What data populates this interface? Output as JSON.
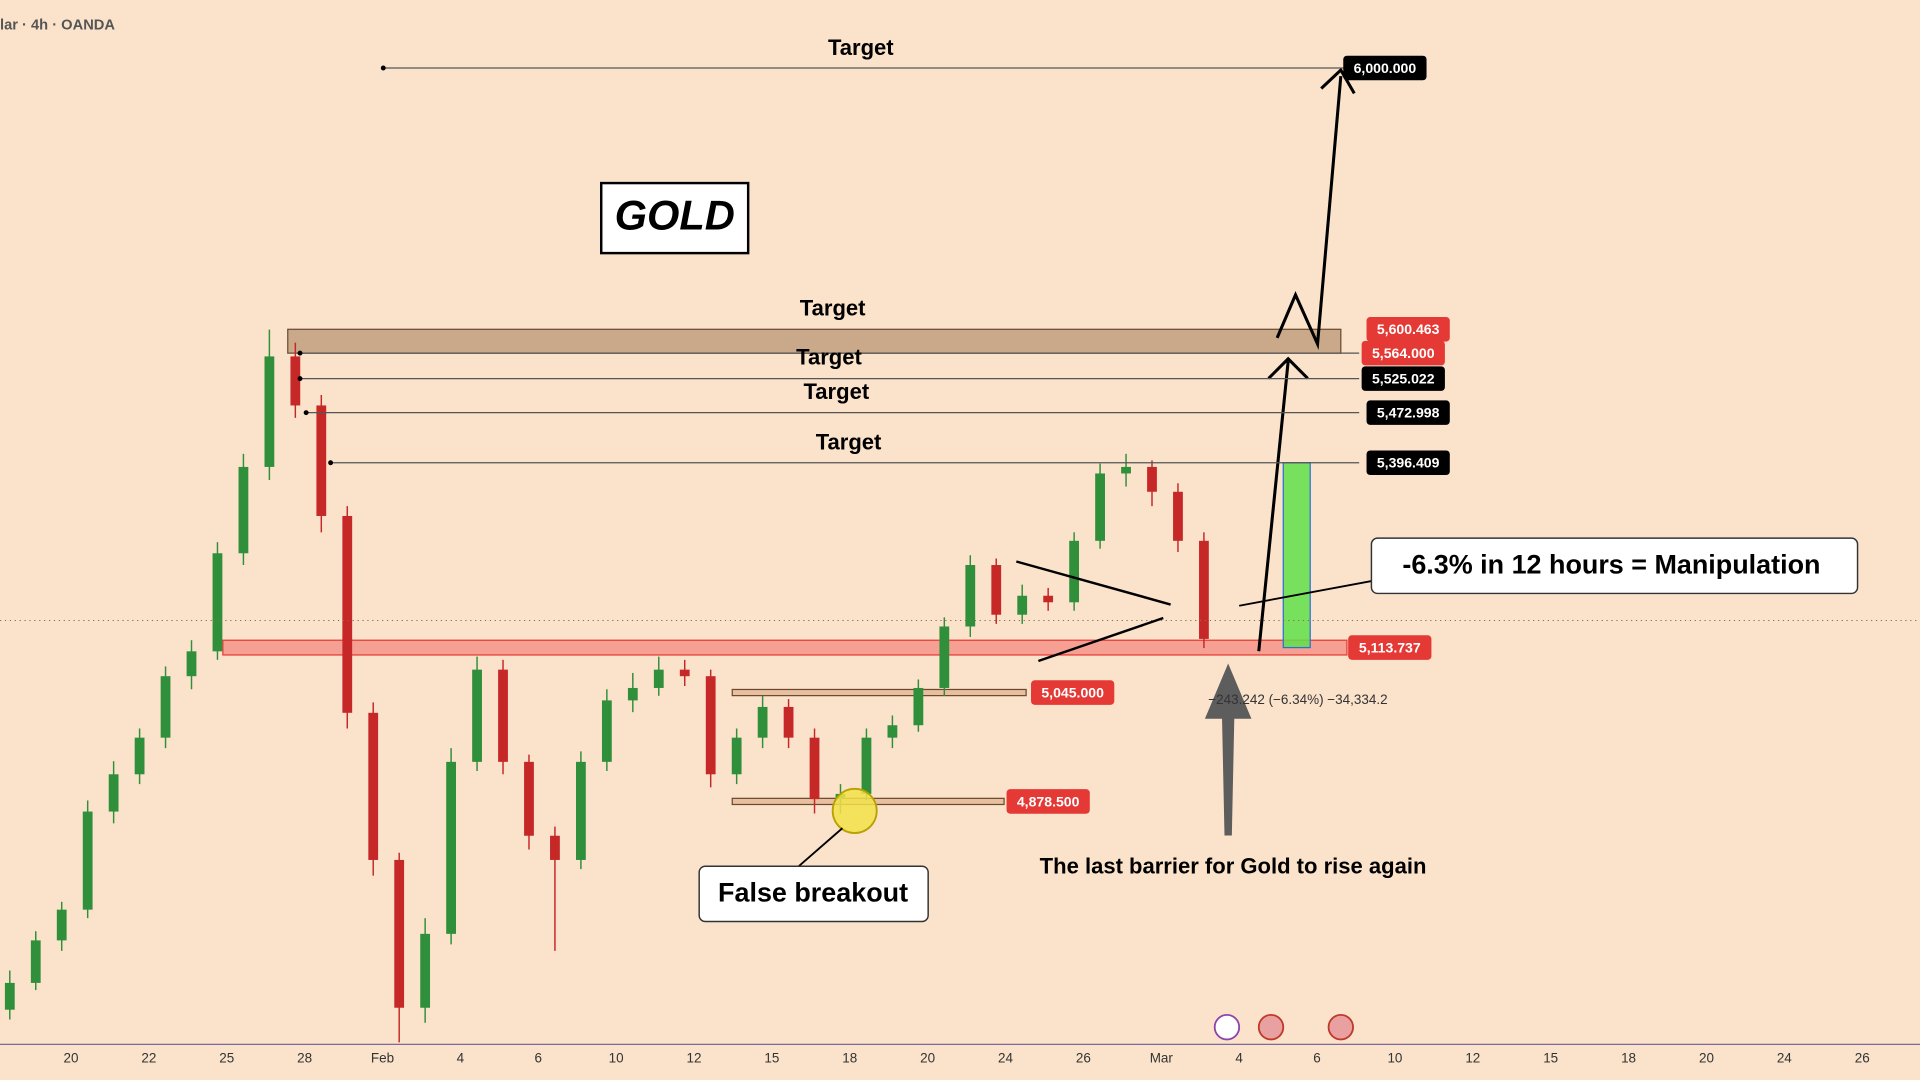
{
  "header": "lar · 4h · OANDA",
  "chart_data": {
    "type": "candlestick",
    "title": "GOLD",
    "ylim": [
      4507,
      6104
    ],
    "up_color": "#2f8f3a",
    "down_color": "#c62828",
    "candles": [
      [
        4560,
        4620,
        4545,
        4601
      ],
      [
        4601,
        4680,
        4590,
        4666
      ],
      [
        4666,
        4725,
        4650,
        4713
      ],
      [
        4713,
        4880,
        4700,
        4863
      ],
      [
        4863,
        4940,
        4845,
        4920
      ],
      [
        4920,
        4990,
        4905,
        4976
      ],
      [
        4976,
        5085,
        4960,
        5070
      ],
      [
        5070,
        5125,
        5050,
        5108
      ],
      [
        5108,
        5275,
        5095,
        5258
      ],
      [
        5258,
        5410,
        5240,
        5390
      ],
      [
        5390,
        5600,
        5370,
        5559
      ],
      [
        5559,
        5580,
        5465,
        5484
      ],
      [
        5484,
        5500,
        5290,
        5315
      ],
      [
        5315,
        5330,
        4990,
        5014
      ],
      [
        5014,
        5030,
        4765,
        4789
      ],
      [
        4789,
        4800,
        4510,
        4563
      ],
      [
        4563,
        4700,
        4540,
        4676
      ],
      [
        4676,
        4960,
        4660,
        4939
      ],
      [
        4939,
        5100,
        4925,
        5080
      ],
      [
        5080,
        5095,
        4920,
        4939
      ],
      [
        4939,
        4950,
        4805,
        4826
      ],
      [
        4826,
        4840,
        4650,
        4789
      ],
      [
        4789,
        4955,
        4775,
        4939
      ],
      [
        4939,
        5050,
        4925,
        5033
      ],
      [
        5033,
        5075,
        5015,
        5052
      ],
      [
        5052,
        5100,
        5040,
        5080
      ],
      [
        5080,
        5095,
        5055,
        5070
      ],
      [
        5070,
        5080,
        4900,
        4920
      ],
      [
        4920,
        4990,
        4905,
        4976
      ],
      [
        4976,
        5040,
        4960,
        5023
      ],
      [
        5023,
        5035,
        4960,
        4976
      ],
      [
        4976,
        4990,
        4860,
        4882
      ],
      [
        4882,
        4905,
        4860,
        4890
      ],
      [
        4890,
        4990,
        4880,
        4976
      ],
      [
        4976,
        5010,
        4960,
        4995
      ],
      [
        4995,
        5065,
        4985,
        5052
      ],
      [
        5052,
        5160,
        5040,
        5146
      ],
      [
        5146,
        5255,
        5130,
        5240
      ],
      [
        5240,
        5250,
        5150,
        5164
      ],
      [
        5164,
        5210,
        5150,
        5193
      ],
      [
        5193,
        5205,
        5170,
        5183
      ],
      [
        5183,
        5290,
        5170,
        5277
      ],
      [
        5277,
        5395,
        5265,
        5380
      ],
      [
        5380,
        5410,
        5360,
        5390
      ],
      [
        5390,
        5400,
        5330,
        5352
      ],
      [
        5352,
        5365,
        5260,
        5277
      ],
      [
        5277,
        5290,
        5113,
        5127
      ]
    ],
    "categories": [
      "20",
      "22",
      "25",
      "28",
      "Feb",
      "4",
      "6",
      "10",
      "12",
      "15",
      "18",
      "20",
      "24",
      "26",
      "Mar",
      "4",
      "6",
      "10",
      "12",
      "15",
      "18",
      "20",
      "24",
      "26"
    ],
    "price_tags": [
      {
        "value": 6000,
        "label": "6,000.000"
      },
      {
        "value": 5600.463,
        "label": "5,600.463"
      },
      {
        "value": 5564,
        "label": "5,564.000"
      },
      {
        "value": 5525.022,
        "label": "5,525.022"
      },
      {
        "value": 5472.998,
        "label": "5,472.998"
      },
      {
        "value": 5396.409,
        "label": "5,396.409"
      },
      {
        "value": 5113.737,
        "label": "5,113.737"
      },
      {
        "value": 5045,
        "label": "5,045.000"
      },
      {
        "value": 4878.5,
        "label": "4,878.500"
      }
    ],
    "price_tag_colors": [
      "#000000",
      "#e53935",
      "#e53935",
      "#000000",
      "#000000",
      "#000000",
      "#e53935",
      "#e53935",
      "#e53935"
    ],
    "targets": [
      "Target",
      "Target",
      "Target",
      "Target",
      "Target"
    ],
    "callout": "-6.3% in 12 hours = Manipulation",
    "false_breakout": "False breakout",
    "note": "The last barrier for Gold to rise again",
    "measure": "−243.242 (−6.34%) −34,334.2"
  }
}
